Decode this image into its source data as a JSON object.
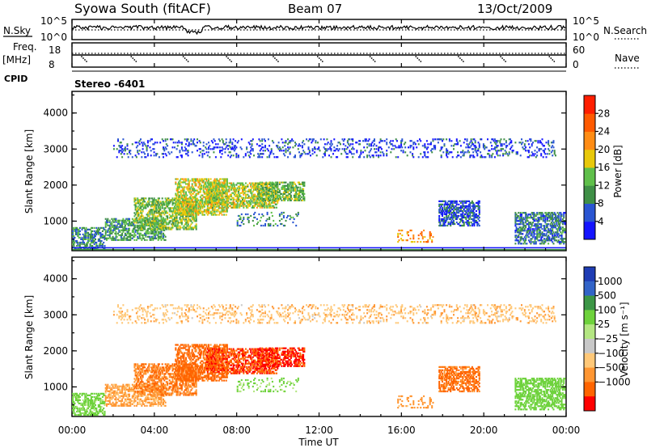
{
  "header": {
    "site": "Syowa South (fitACF)",
    "beam": "Beam 07",
    "date": "13/Oct/2009"
  },
  "noise_panel": {
    "left_label": "N.Sky",
    "left_top": "10^5",
    "left_bottom": "10^0",
    "right_top": "10^5",
    "right_bottom": "10^0",
    "right_label": "N.Search"
  },
  "freq_panel": {
    "left_label_1": "Freq.",
    "left_label_2": "[MHz]",
    "left_top": "18",
    "left_bottom": "8",
    "right_top": "60",
    "right_bottom": "0",
    "right_label": "Nave"
  },
  "cpid": {
    "label": "CPID",
    "value": "Stereo -6401"
  },
  "colors": {
    "power": [
      "#1414ff",
      "#2a55d2",
      "#3f8f46",
      "#5fbf4a",
      "#e8c80a",
      "#ff8c14",
      "#ff5a00",
      "#ff1e00"
    ],
    "velocity": [
      "#ff0000",
      "#ff6400",
      "#ff9632",
      "#ffc878",
      "#c8c8c8",
      "#b4e682",
      "#6ed23c",
      "#3c9646",
      "#3264c8",
      "#1e3cb4"
    ]
  },
  "chart_data": [
    {
      "type": "heatmap",
      "name": "power",
      "ylabel": "Slant Range [km]",
      "yticks": [
        "1000",
        "2000",
        "3000",
        "4000"
      ],
      "ylim": [
        180,
        4600
      ],
      "xlim": [
        0,
        24
      ],
      "colorbar_label": "Power [dB]",
      "colorbar_ticks": [
        "4",
        "8",
        "12",
        "16",
        "20",
        "24",
        "28"
      ],
      "colorbar_range": [
        0,
        32
      ],
      "echo_regions": [
        {
          "t0": 0.0,
          "t1": 1.6,
          "r0": 250,
          "r1": 850,
          "power": 9,
          "velocity": 150
        },
        {
          "t0": 1.6,
          "t1": 4.5,
          "r0": 500,
          "r1": 1100,
          "power": 11,
          "velocity": -120
        },
        {
          "t0": 3.0,
          "t1": 6.0,
          "r0": 800,
          "r1": 1700,
          "power": 14,
          "velocity": -500
        },
        {
          "t0": 5.0,
          "t1": 7.5,
          "r0": 1200,
          "r1": 2200,
          "power": 17,
          "velocity": -700
        },
        {
          "t0": 6.5,
          "t1": 10.0,
          "r0": 1400,
          "r1": 2100,
          "power": 16,
          "velocity": -900
        },
        {
          "t0": 9.0,
          "t1": 11.3,
          "r0": 1600,
          "r1": 2100,
          "power": 13,
          "velocity": -1100
        },
        {
          "t0": 8.0,
          "t1": 11.0,
          "r0": 900,
          "r1": 1300,
          "power": 9,
          "velocity": 120
        },
        {
          "t0": 15.8,
          "t1": 17.6,
          "r0": 450,
          "r1": 800,
          "power": 22,
          "velocity": -150
        },
        {
          "t0": 17.8,
          "t1": 19.8,
          "r0": 900,
          "r1": 1600,
          "power": 6,
          "velocity": -600
        },
        {
          "t0": 21.5,
          "t1": 24.0,
          "r0": 400,
          "r1": 1300,
          "power": 8,
          "velocity": 300
        },
        {
          "t0": 2.0,
          "t1": 23.5,
          "r0": 2800,
          "r1": 3300,
          "power": 5,
          "velocity": -80
        }
      ]
    },
    {
      "type": "heatmap",
      "name": "velocity",
      "ylabel": "Slant Range [km]",
      "yticks": [
        "1000",
        "2000",
        "3000",
        "4000"
      ],
      "ylim": [
        180,
        4600
      ],
      "xlim": [
        0,
        24
      ],
      "xlabel": "Time UT",
      "xticks": [
        "00:00",
        "04:00",
        "08:00",
        "12:00",
        "16:00",
        "20:00",
        "00:00"
      ],
      "colorbar_label": "Velocity [m s⁻¹]",
      "colorbar_ticks": [
        "1000",
        "500",
        "100",
        "25",
        "−25",
        "−100",
        "−500",
        "−1000"
      ]
    }
  ]
}
